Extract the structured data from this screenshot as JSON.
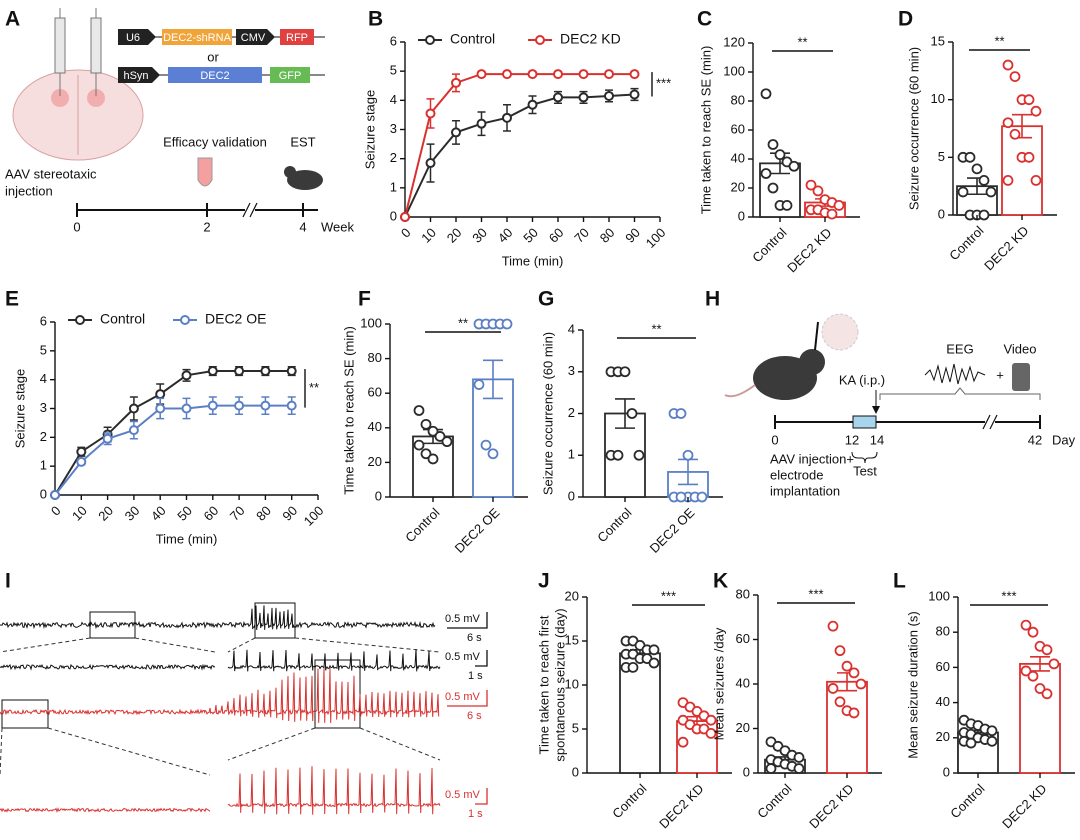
{
  "panel_a": {
    "label": "A",
    "constructs": [
      [
        "U6",
        "DEC2-shRNA",
        "CMV",
        "RFP"
      ],
      [
        "hSyn",
        "DEC2",
        "GFP"
      ]
    ],
    "or": "or",
    "injection": [
      "AAV stereotaxic",
      "injection"
    ],
    "validation": "Efficacy validation",
    "est": "EST",
    "timeline": [
      "0",
      "2",
      "4"
    ],
    "unit": "Week"
  },
  "panel_h": {
    "label": "H",
    "eeg": "EEG",
    "plus": "+",
    "video": "Video",
    "ka": "KA (i.p.)",
    "timeline": [
      "0",
      "12",
      "14",
      "42"
    ],
    "unit": "Day",
    "injection": [
      "AAV injection+",
      "electrode",
      "implantation"
    ],
    "test": "Test"
  },
  "panel_i": {
    "label": "I",
    "scales": [
      {
        "amplitude": "0.5 mV",
        "time": "6 s"
      },
      {
        "amplitude": "0.5 mV",
        "time": "1 s"
      },
      {
        "amplitude": "0.5 mV",
        "time": "6 s"
      },
      {
        "amplitude": "0.5 mV",
        "time": "1 s"
      }
    ]
  },
  "chart_data": [
    {
      "panel": "B",
      "type": "line",
      "xlabel": "Time (min)",
      "ylabel": "Seizure stage",
      "significance": "***",
      "x": [
        0,
        10,
        20,
        30,
        40,
        50,
        60,
        70,
        80,
        90
      ],
      "xlim": [
        0,
        100
      ],
      "xticks": [
        0,
        10,
        20,
        30,
        40,
        50,
        60,
        70,
        80,
        90,
        100
      ],
      "ylim": [
        0,
        6
      ],
      "yticks": [
        0,
        1,
        2,
        3,
        4,
        5,
        6
      ],
      "series": [
        {
          "name": "Control",
          "color": "#2b2b2b",
          "values": [
            0,
            1.85,
            2.9,
            3.2,
            3.4,
            3.85,
            4.1,
            4.1,
            4.15,
            4.2
          ],
          "errors": [
            0,
            0.65,
            0.4,
            0.4,
            0.45,
            0.3,
            0.2,
            0.2,
            0.2,
            0.2
          ]
        },
        {
          "name": "DEC2 KD",
          "color": "#d9312f",
          "values": [
            0,
            3.55,
            4.6,
            4.9,
            4.9,
            4.9,
            4.9,
            4.9,
            4.9,
            4.9
          ],
          "errors": [
            0,
            0.5,
            0.3,
            0.05,
            0.05,
            0.05,
            0.05,
            0.05,
            0.05,
            0.05
          ]
        }
      ]
    },
    {
      "panel": "C",
      "type": "bar",
      "ylabel": "Time taken to reach SE (min)",
      "significance": "**",
      "categories": [
        "Control",
        "DEC2 KD"
      ],
      "colors": [
        "#2b2b2b",
        "#d9312f"
      ],
      "values": [
        37,
        10
      ],
      "errors": [
        7,
        2.5
      ],
      "points": [
        [
          85,
          50,
          43,
          38,
          35,
          30,
          20,
          8,
          8
        ],
        [
          22,
          18,
          12,
          10,
          8,
          5,
          5,
          3,
          2
        ]
      ],
      "ylim": [
        0,
        120
      ],
      "yticks": [
        0,
        20,
        40,
        60,
        80,
        100,
        120
      ]
    },
    {
      "panel": "D",
      "type": "bar",
      "ylabel": "Seizure occurrence (60 min)",
      "significance": "**",
      "categories": [
        "Control",
        "DEC2 KD"
      ],
      "colors": [
        "#2b2b2b",
        "#d9312f"
      ],
      "values": [
        2.5,
        7.7
      ],
      "errors": [
        0.7,
        1
      ],
      "points": [
        [
          5,
          5,
          4,
          3,
          2,
          2,
          0,
          0,
          0
        ],
        [
          13,
          12,
          10,
          10,
          9,
          8,
          7,
          5,
          5,
          3,
          3
        ]
      ],
      "ylim": [
        0,
        15
      ],
      "yticks": [
        0,
        5,
        10,
        15
      ]
    },
    {
      "panel": "E",
      "type": "line",
      "xlabel": "Time (min)",
      "ylabel": "Seizure stage",
      "significance": "**",
      "x": [
        0,
        10,
        20,
        30,
        40,
        50,
        60,
        70,
        80,
        90
      ],
      "xlim": [
        0,
        100
      ],
      "xticks": [
        0,
        10,
        20,
        30,
        40,
        50,
        60,
        70,
        80,
        90,
        100
      ],
      "ylim": [
        0,
        6
      ],
      "yticks": [
        0,
        1,
        2,
        3,
        4,
        5,
        6
      ],
      "series": [
        {
          "name": "Control",
          "color": "#2b2b2b",
          "values": [
            0,
            1.5,
            2.1,
            3.0,
            3.5,
            4.15,
            4.3,
            4.3,
            4.3,
            4.3
          ],
          "errors": [
            0,
            0.15,
            0.25,
            0.4,
            0.35,
            0.2,
            0.15,
            0.15,
            0.15,
            0.15
          ]
        },
        {
          "name": "DEC2 OE",
          "color": "#5b7fc4",
          "values": [
            0,
            1.15,
            1.95,
            2.25,
            3.0,
            3.0,
            3.1,
            3.1,
            3.1,
            3.1
          ],
          "errors": [
            0,
            0.1,
            0.2,
            0.3,
            0.35,
            0.35,
            0.3,
            0.3,
            0.3,
            0.3
          ]
        }
      ]
    },
    {
      "panel": "F",
      "type": "bar",
      "ylabel": "Time taken to reach SE (min)",
      "significance": "**",
      "categories": [
        "Control",
        "DEC2 OE"
      ],
      "colors": [
        "#2b2b2b",
        "#5b7fc4"
      ],
      "values": [
        35,
        68
      ],
      "errors": [
        4,
        11
      ],
      "points": [
        [
          50,
          42,
          38,
          35,
          32,
          30,
          25,
          22
        ],
        [
          100,
          100,
          100,
          100,
          100,
          65,
          30,
          25
        ]
      ],
      "ylim": [
        0,
        100
      ],
      "yticks": [
        0,
        20,
        40,
        60,
        80,
        100
      ]
    },
    {
      "panel": "G",
      "type": "bar",
      "ylabel": "Seizure occurrence (60 min)",
      "significance": "**",
      "categories": [
        "Control",
        "DEC2 OE"
      ],
      "colors": [
        "#2b2b2b",
        "#5b7fc4"
      ],
      "values": [
        2,
        0.6
      ],
      "errors": [
        0.35,
        0.3
      ],
      "points": [
        [
          3,
          3,
          3,
          2,
          1,
          1,
          1
        ],
        [
          2,
          2,
          0,
          0,
          0,
          0,
          0,
          1
        ]
      ],
      "ylim": [
        0,
        4
      ],
      "yticks": [
        0,
        1,
        2,
        3,
        4
      ]
    },
    {
      "panel": "J",
      "type": "bar",
      "ylabel": [
        "Time taken to reach first",
        "spontaneous seizure (day)"
      ],
      "significance": "***",
      "categories": [
        "Control",
        "DEC2 KD"
      ],
      "colors": [
        "#2b2b2b",
        "#d9312f"
      ],
      "values": [
        13.6,
        5.9
      ],
      "errors": [
        0.4,
        0.5
      ],
      "points": [
        [
          15,
          15,
          14.5,
          14,
          14,
          13.5,
          13.5,
          13,
          13,
          12.5,
          12,
          12
        ],
        [
          8,
          7.5,
          7,
          6.5,
          6,
          6,
          5.5,
          5,
          5,
          4.5,
          3.5
        ]
      ],
      "ylim": [
        0,
        20
      ],
      "yticks": [
        0,
        5,
        10,
        15,
        20
      ]
    },
    {
      "panel": "K",
      "type": "bar",
      "ylabel": "Mean seizures /day",
      "significance": "***",
      "categories": [
        "Control",
        "DEC2 KD"
      ],
      "colors": [
        "#2b2b2b",
        "#d9312f"
      ],
      "values": [
        6,
        41
      ],
      "errors": [
        1.2,
        4
      ],
      "points": [
        [
          14,
          12,
          10,
          8,
          7,
          6,
          5,
          4,
          3,
          2,
          2
        ],
        [
          66,
          55,
          48,
          45,
          40,
          38,
          32,
          28,
          27
        ]
      ],
      "ylim": [
        0,
        80
      ],
      "yticks": [
        0,
        20,
        40,
        60,
        80
      ]
    },
    {
      "panel": "L",
      "type": "bar",
      "ylabel": "Mean seizure duration (s)",
      "significance": "***",
      "categories": [
        "Control",
        "DEC2 KD"
      ],
      "colors": [
        "#2b2b2b",
        "#d9312f"
      ],
      "values": [
        23,
        62
      ],
      "errors": [
        1.2,
        4
      ],
      "points": [
        [
          30,
          28,
          27,
          25,
          24,
          23,
          22,
          20,
          19,
          18,
          18,
          17
        ],
        [
          84,
          80,
          72,
          70,
          62,
          58,
          55,
          48,
          45
        ]
      ],
      "ylim": [
        0,
        100
      ],
      "yticks": [
        0,
        20,
        40,
        60,
        80,
        100
      ]
    }
  ]
}
